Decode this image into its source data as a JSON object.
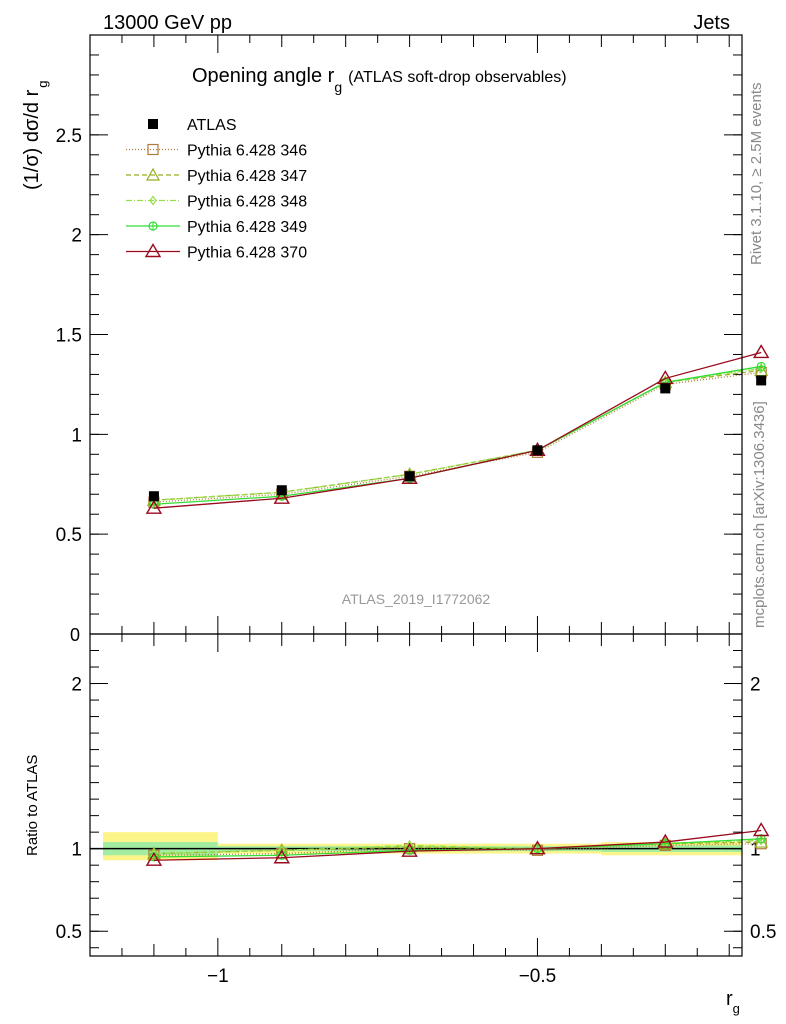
{
  "header": {
    "energy_label": "13000 GeV pp",
    "category_label": "Jets"
  },
  "side": {
    "rivet_label": "Rivet 3.1.10, ≥ 2.5M events",
    "source_label": "mcplots.cern.ch [arXiv:1306.3436]"
  },
  "chart_data": [
    {
      "type": "line",
      "title": "Opening angle r",
      "title_sub": "g",
      "title_suffix": "(ATLAS soft-drop observables)",
      "ylabel": "(1/σ) dσ/d r",
      "ylabel_sub": "g",
      "watermark": "ATLAS_2019_I1772062",
      "xlim": [
        -1.2,
        -0.18
      ],
      "ylim": [
        0,
        3.0
      ],
      "yticks": [
        0.5,
        1,
        1.5,
        2,
        2.5
      ],
      "ytick_labels": [
        "0.5",
        "1",
        "1.5",
        "2",
        "2.5"
      ],
      "bottom_tick_label": "0",
      "x": [
        -1.1,
        -0.9,
        -0.7,
        -0.5,
        -0.3,
        -0.15
      ],
      "data_series": {
        "name": "ATLAS",
        "values": [
          0.69,
          0.72,
          0.79,
          0.92,
          1.23,
          1.27
        ]
      },
      "series": [
        {
          "name": "Pythia 6.428 346",
          "color": "#b07a3a",
          "dash": "1,2",
          "marker": "square",
          "values": [
            0.66,
            0.7,
            0.79,
            0.91,
            1.25,
            1.31
          ]
        },
        {
          "name": "Pythia 6.428 347",
          "color": "#9aae1f",
          "dash": "5,3",
          "marker": "triangle",
          "values": [
            0.67,
            0.71,
            0.8,
            0.92,
            1.26,
            1.32
          ]
        },
        {
          "name": "Pythia 6.428 348",
          "color": "#94e04a",
          "dash": "6,2,1,2",
          "marker": "diamond",
          "values": [
            0.67,
            0.71,
            0.8,
            0.92,
            1.26,
            1.33
          ]
        },
        {
          "name": "Pythia 6.428 349",
          "color": "#33dd33",
          "dash": "",
          "marker": "circle-cross",
          "values": [
            0.65,
            0.69,
            0.78,
            0.92,
            1.26,
            1.34
          ]
        },
        {
          "name": "Pythia 6.428 370",
          "color": "#990a1e",
          "dash": "",
          "marker": "triangle-open",
          "values": [
            0.63,
            0.68,
            0.78,
            0.92,
            1.28,
            1.41
          ]
        }
      ]
    },
    {
      "type": "line",
      "ylabel": "Ratio to ATLAS",
      "xlabel": "r",
      "xlabel_sub": "g",
      "xlim": [
        -1.2,
        -0.18
      ],
      "ylim": [
        0.35,
        2.3
      ],
      "yticks": [
        0.5,
        1,
        2
      ],
      "ytick_labels": [
        "0.5",
        "1",
        "2"
      ],
      "xticks": [
        -1,
        -0.5
      ],
      "xtick_labels": [
        "−1",
        "−0.5"
      ],
      "x": [
        -1.1,
        -0.9,
        -0.7,
        -0.5,
        -0.3,
        -0.15
      ],
      "bands": [
        {
          "x0": -1.2,
          "x1": -1.0,
          "yellow": [
            0.93,
            1.1
          ],
          "green": [
            0.96,
            1.04
          ]
        },
        {
          "x0": -1.0,
          "x1": -0.8,
          "yellow": [
            0.97,
            1.03
          ],
          "green": [
            0.985,
            1.015
          ]
        },
        {
          "x0": -0.8,
          "x1": -0.6,
          "yellow": [
            0.97,
            1.03
          ],
          "green": [
            0.985,
            1.015
          ]
        },
        {
          "x0": -0.6,
          "x1": -0.4,
          "yellow": [
            0.97,
            1.03
          ],
          "green": [
            0.985,
            1.015
          ]
        },
        {
          "x0": -0.4,
          "x1": -0.2,
          "yellow": [
            0.96,
            1.04
          ],
          "green": [
            0.98,
            1.02
          ]
        },
        {
          "x0": -0.2,
          "x1": -0.18,
          "yellow": [
            0.96,
            1.04
          ],
          "green": [
            0.98,
            1.02
          ]
        }
      ],
      "series": [
        {
          "name": "Pythia 6.428 346",
          "values": [
            0.96,
            0.97,
            1.0,
            0.99,
            1.02,
            1.03
          ]
        },
        {
          "name": "Pythia 6.428 347",
          "values": [
            0.97,
            0.99,
            1.01,
            1.0,
            1.03,
            1.04
          ]
        },
        {
          "name": "Pythia 6.428 348",
          "values": [
            0.97,
            0.99,
            1.02,
            1.0,
            1.03,
            1.05
          ]
        },
        {
          "name": "Pythia 6.428 349",
          "values": [
            0.95,
            0.96,
            0.99,
            1.0,
            1.03,
            1.06
          ]
        },
        {
          "name": "Pythia 6.428 370",
          "values": [
            0.93,
            0.945,
            0.985,
            1.0,
            1.04,
            1.11
          ]
        }
      ]
    }
  ]
}
